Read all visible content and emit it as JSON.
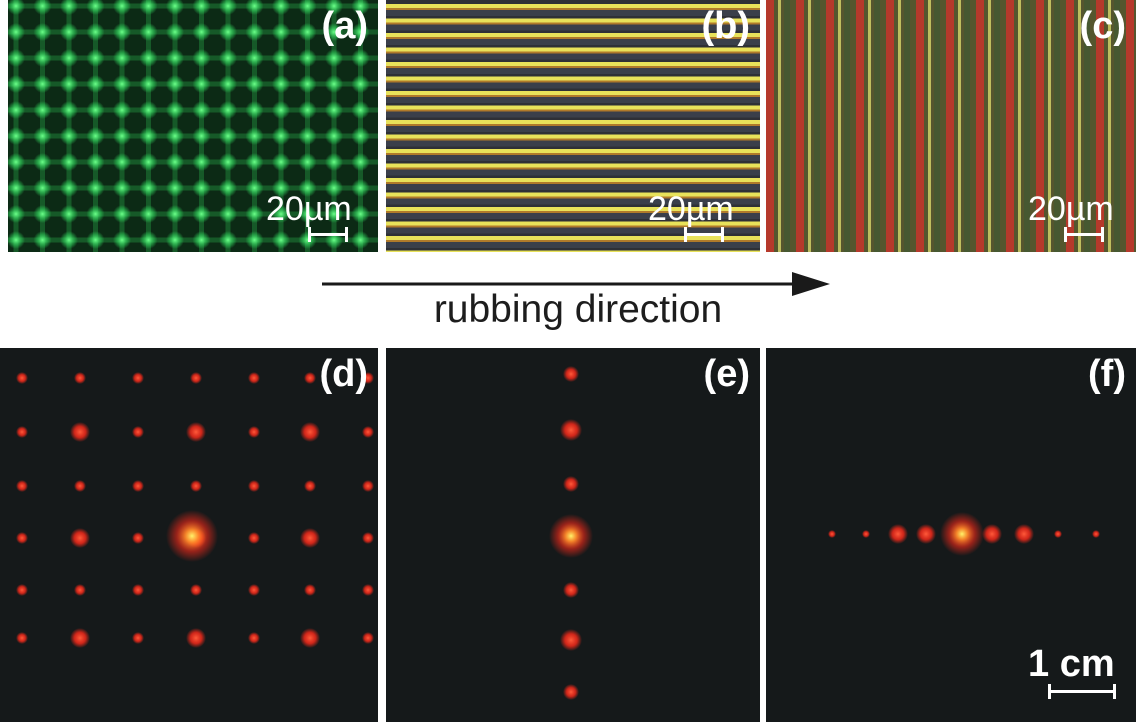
{
  "panels": {
    "a": {
      "label": "(a)",
      "scale": "20µm"
    },
    "b": {
      "label": "(b)",
      "scale": "20µm"
    },
    "c": {
      "label": "(c)",
      "scale": "20µm"
    },
    "d": {
      "label": "(d)"
    },
    "e": {
      "label": "(e)"
    },
    "f": {
      "label": "(f)",
      "scale": "1 cm"
    }
  },
  "arrow": {
    "label": "rubbing direction"
  },
  "colors": {
    "grid_green": "#2fd05a",
    "stripe_yellow": "#e8e25a",
    "stripe_red": "#c8342a",
    "spot_red": "#ff2a1a",
    "dark_bg": "#15191a"
  }
}
